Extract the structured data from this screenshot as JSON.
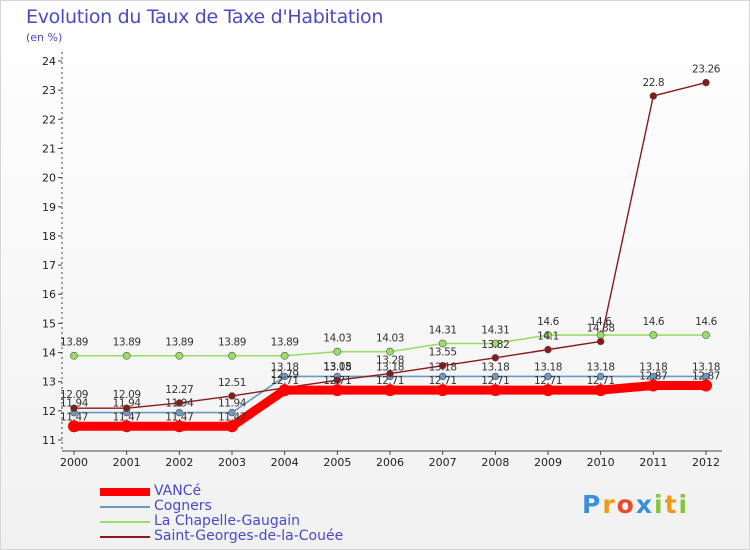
{
  "header": {
    "title": "Evolution du Taux de Taxe d'Habitation",
    "unit": "(en %)"
  },
  "logo": {
    "letters": [
      "P",
      "r",
      "o",
      "x",
      "i",
      "t",
      "i"
    ]
  },
  "chart_data": {
    "type": "line",
    "x": [
      2000,
      2001,
      2002,
      2003,
      2004,
      2005,
      2006,
      2007,
      2008,
      2009,
      2010,
      2011,
      2012
    ],
    "yticks": [
      11,
      12,
      13,
      14,
      15,
      16,
      17,
      18,
      19,
      20,
      21,
      22,
      23,
      24
    ],
    "ylim": [
      10.8,
      24.3
    ],
    "grid": false,
    "legend_position": "bottom-left",
    "series": [
      {
        "name": "VANCé",
        "color": "#ff0000",
        "values": [
          11.47,
          11.47,
          11.47,
          11.47,
          12.71,
          12.71,
          12.71,
          12.71,
          12.71,
          12.71,
          12.71,
          12.87,
          12.87
        ],
        "labels": [
          "11.47",
          "11.47",
          "11.47",
          "11.47",
          "12.71",
          "12.71",
          "12.71",
          "12.71",
          "12.71",
          "12.71",
          "12.71",
          "12.87",
          "12.87"
        ]
      },
      {
        "name": "Cogners",
        "color": "#6a9ac4",
        "values": [
          11.94,
          11.94,
          11.94,
          11.94,
          13.18,
          13.18,
          13.18,
          13.18,
          13.18,
          13.18,
          13.18,
          13.18,
          13.18
        ],
        "labels": [
          "11.94",
          "11.94",
          "11.94",
          "11.94",
          "13.18",
          "13.18",
          "13.18",
          "13.18",
          "13.18",
          "13.18",
          "13.18",
          "13.18",
          "13.18"
        ]
      },
      {
        "name": "La Chapelle-Gaugain",
        "color": "#99dd66",
        "values": [
          13.89,
          13.89,
          13.89,
          13.89,
          13.89,
          14.03,
          14.03,
          14.31,
          14.31,
          14.6,
          14.6,
          14.6,
          14.6
        ],
        "labels": [
          "13.89",
          "13.89",
          "13.89",
          "13.89",
          "13.89",
          "14.03",
          "14.03",
          "14.31",
          "14.31",
          "14.6",
          "14.6",
          "14.6",
          "14.6"
        ]
      },
      {
        "name": "Saint-Georges-de-la-Couée",
        "color": "#8a1a1a",
        "values": [
          12.09,
          12.09,
          12.27,
          12.51,
          12.79,
          13.05,
          13.28,
          13.55,
          13.82,
          14.1,
          14.38,
          22.8,
          23.26
        ],
        "labels": [
          "12.09",
          "12.09",
          "12.27",
          "12.51",
          "12.79",
          "13.05",
          "13.28",
          "13.55",
          "13.82",
          "14.1",
          "14.38",
          "22.8",
          "23.26"
        ]
      }
    ]
  }
}
